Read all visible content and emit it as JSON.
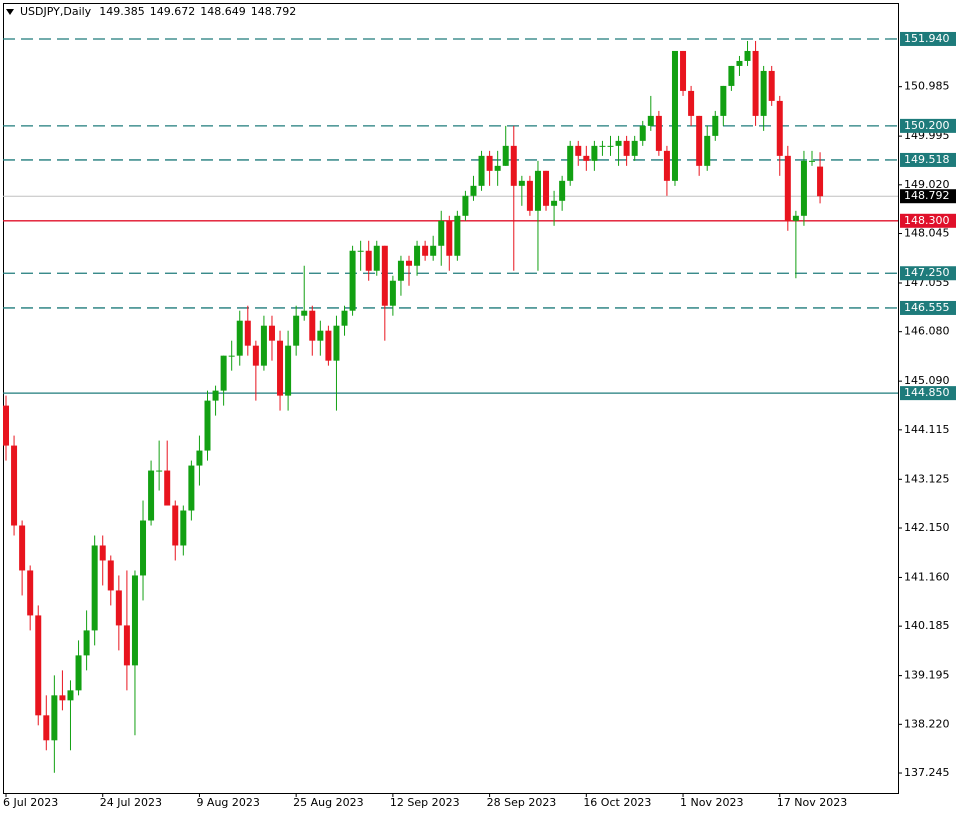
{
  "chart_data": {
    "type": "candlestick",
    "symbol": "USDJPY,Daily",
    "up_color": "#12a012",
    "down_color": "#e8141e",
    "categories": [
      "6 Jul 2023",
      null,
      null,
      null,
      null,
      null,
      null,
      null,
      null,
      null,
      null,
      null,
      "24 Jul 2023",
      null,
      null,
      null,
      null,
      null,
      null,
      null,
      null,
      null,
      null,
      null,
      "9 Aug 2023",
      null,
      null,
      null,
      null,
      null,
      null,
      null,
      null,
      null,
      null,
      null,
      "25 Aug 2023",
      null,
      null,
      null,
      null,
      null,
      null,
      null,
      null,
      null,
      null,
      null,
      "12 Sep 2023",
      null,
      null,
      null,
      null,
      null,
      null,
      null,
      null,
      null,
      null,
      null,
      "28 Sep 2023",
      null,
      null,
      null,
      null,
      null,
      null,
      null,
      null,
      null,
      null,
      null,
      "16 Oct 2023",
      null,
      null,
      null,
      null,
      null,
      null,
      null,
      null,
      null,
      null,
      null,
      "1 Nov 2023",
      null,
      null,
      null,
      null,
      null,
      null,
      null,
      null,
      null,
      null,
      null,
      "17 Nov 2023",
      null,
      null,
      null,
      null,
      null
    ],
    "open": [
      144.6,
      143.8,
      142.2,
      141.3,
      140.4,
      138.4,
      137.9,
      138.8,
      138.7,
      138.9,
      139.6,
      140.1,
      141.8,
      141.5,
      140.9,
      140.2,
      139.4,
      141.2,
      142.3,
      143.3,
      143.3,
      142.6,
      141.8,
      142.5,
      143.4,
      143.7,
      144.7,
      144.9,
      145.6,
      145.6,
      146.3,
      145.8,
      145.4,
      146.2,
      145.9,
      144.8,
      145.8,
      146.4,
      146.5,
      145.9,
      146.1,
      145.5,
      146.2,
      146.5,
      147.7,
      147.7,
      147.3,
      147.8,
      146.6,
      147.1,
      147.5,
      147.4,
      147.8,
      147.6,
      147.8,
      148.3,
      147.6,
      148.4,
      148.8,
      149.0,
      149.6,
      149.3,
      149.4,
      149.8,
      149.0,
      149.1,
      148.5,
      149.3,
      148.6,
      148.7,
      149.1,
      149.8,
      149.6,
      149.5,
      149.8,
      149.8,
      149.8,
      149.9,
      149.6,
      149.9,
      150.2,
      150.4,
      149.7,
      149.1,
      151.7,
      150.9,
      150.4,
      149.4,
      150.0,
      150.4,
      151.0,
      151.4,
      151.5,
      151.7,
      150.4,
      151.3,
      150.7,
      149.6,
      148.3,
      148.4,
      149.5,
      149.385
    ],
    "high": [
      144.8,
      144.0,
      142.3,
      141.4,
      140.6,
      138.8,
      139.2,
      139.3,
      139.1,
      139.9,
      140.5,
      142.0,
      142.0,
      141.6,
      141.2,
      141.3,
      141.3,
      142.7,
      143.5,
      143.9,
      143.9,
      142.7,
      142.6,
      143.5,
      144.0,
      144.9,
      145.0,
      145.6,
      145.9,
      146.5,
      146.6,
      145.9,
      146.4,
      146.4,
      146.1,
      146.1,
      146.6,
      147.4,
      146.6,
      146.3,
      146.2,
      146.4,
      146.6,
      147.8,
      147.9,
      147.9,
      147.9,
      147.8,
      147.2,
      147.6,
      147.6,
      147.9,
      147.9,
      148.0,
      148.5,
      148.4,
      148.5,
      148.9,
      149.2,
      149.7,
      149.7,
      149.7,
      150.2,
      150.2,
      149.2,
      149.2,
      149.5,
      149.3,
      148.9,
      149.2,
      149.9,
      149.9,
      149.8,
      149.9,
      149.9,
      150.0,
      150.0,
      150.0,
      150.0,
      150.3,
      150.8,
      150.5,
      149.8,
      151.7,
      151.7,
      151.0,
      150.4,
      150.2,
      150.5,
      151.0,
      151.4,
      151.6,
      151.9,
      151.9,
      151.4,
      151.4,
      150.8,
      149.8,
      148.5,
      149.7,
      149.7,
      149.672
    ],
    "low": [
      143.5,
      142.0,
      140.8,
      140.1,
      138.2,
      137.7,
      137.25,
      138.5,
      137.7,
      138.8,
      139.3,
      139.8,
      141.0,
      140.6,
      139.7,
      138.9,
      138.0,
      140.7,
      142.2,
      142.9,
      142.6,
      141.5,
      141.6,
      142.3,
      143.0,
      143.5,
      144.4,
      144.6,
      145.3,
      145.4,
      145.6,
      144.7,
      145.3,
      145.5,
      144.5,
      144.5,
      145.6,
      146.3,
      145.6,
      145.6,
      145.4,
      144.5,
      146.0,
      146.4,
      147.3,
      147.1,
      147.2,
      145.9,
      146.4,
      146.8,
      147.0,
      147.2,
      147.5,
      147.5,
      147.4,
      147.3,
      147.5,
      148.3,
      148.7,
      148.9,
      149.0,
      149.0,
      149.4,
      147.3,
      148.6,
      148.4,
      147.3,
      148.5,
      148.2,
      148.5,
      149.0,
      149.4,
      149.3,
      149.3,
      149.6,
      149.6,
      149.4,
      149.4,
      149.5,
      149.8,
      150.1,
      149.6,
      148.8,
      149.0,
      150.8,
      150.2,
      149.2,
      149.3,
      149.9,
      150.2,
      150.9,
      151.2,
      151.4,
      150.2,
      150.1,
      150.6,
      149.2,
      148.1,
      147.15,
      148.2,
      149.4,
      148.649
    ],
    "close": [
      143.8,
      142.2,
      141.3,
      140.4,
      138.4,
      137.9,
      138.8,
      138.7,
      138.9,
      139.6,
      140.1,
      141.8,
      141.5,
      140.9,
      140.2,
      139.4,
      141.2,
      142.3,
      143.3,
      143.3,
      142.6,
      141.8,
      142.5,
      143.4,
      143.7,
      144.7,
      144.9,
      145.6,
      145.6,
      146.3,
      145.8,
      145.4,
      146.2,
      145.9,
      144.8,
      145.8,
      146.4,
      146.5,
      145.9,
      146.1,
      145.5,
      146.2,
      146.5,
      147.7,
      147.7,
      147.3,
      147.8,
      146.6,
      147.1,
      147.5,
      147.4,
      147.8,
      147.6,
      147.8,
      148.3,
      147.6,
      148.4,
      148.8,
      149.0,
      149.6,
      149.3,
      149.4,
      149.8,
      149.0,
      149.1,
      148.5,
      149.3,
      148.6,
      148.7,
      149.1,
      149.8,
      149.6,
      149.5,
      149.8,
      149.8,
      149.8,
      149.9,
      149.6,
      149.9,
      150.2,
      150.4,
      149.7,
      149.1,
      151.7,
      150.9,
      150.4,
      149.4,
      150.0,
      150.4,
      151.0,
      151.4,
      151.5,
      151.7,
      150.4,
      151.3,
      150.7,
      149.6,
      148.3,
      148.4,
      149.5,
      149.5,
      148.792
    ],
    "ylim": [
      136.845,
      152.66
    ],
    "yticks": [
      137.245,
      {
        "value": 138.22,
        "label": "138.220"
      },
      139.195,
      140.185,
      {
        "value": 141.16,
        "label": "141.160"
      },
      {
        "value": 142.15,
        "label": "142.150"
      },
      143.125,
      144.115,
      {
        "value": 145.09,
        "label": "145.090"
      },
      {
        "value": 146.08,
        "label": "146.080"
      },
      147.055,
      148.045,
      {
        "value": 149.02,
        "label": "149.020"
      },
      149.995,
      150.985
    ],
    "levels": [
      {
        "value": 151.94,
        "label": "151.940",
        "color": "#1e7b7b",
        "style": "dashed"
      },
      {
        "value": 150.2,
        "label": "150.200",
        "color": "#1e7b7b",
        "style": "dashed"
      },
      {
        "value": 149.518,
        "color": "#1e7b7b",
        "style": "dashed"
      },
      {
        "value": 148.3,
        "label": "148.300",
        "color": "#e0102a",
        "style": "solid"
      },
      {
        "value": 147.25,
        "label": "147.250",
        "color": "#1e7b7b",
        "style": "dashed"
      },
      {
        "value": 146.555,
        "color": "#1e7b7b",
        "style": "dashed"
      },
      {
        "value": 144.85,
        "label": "144.850",
        "color": "#1e7b7b",
        "style": "solid"
      }
    ]
  }
}
